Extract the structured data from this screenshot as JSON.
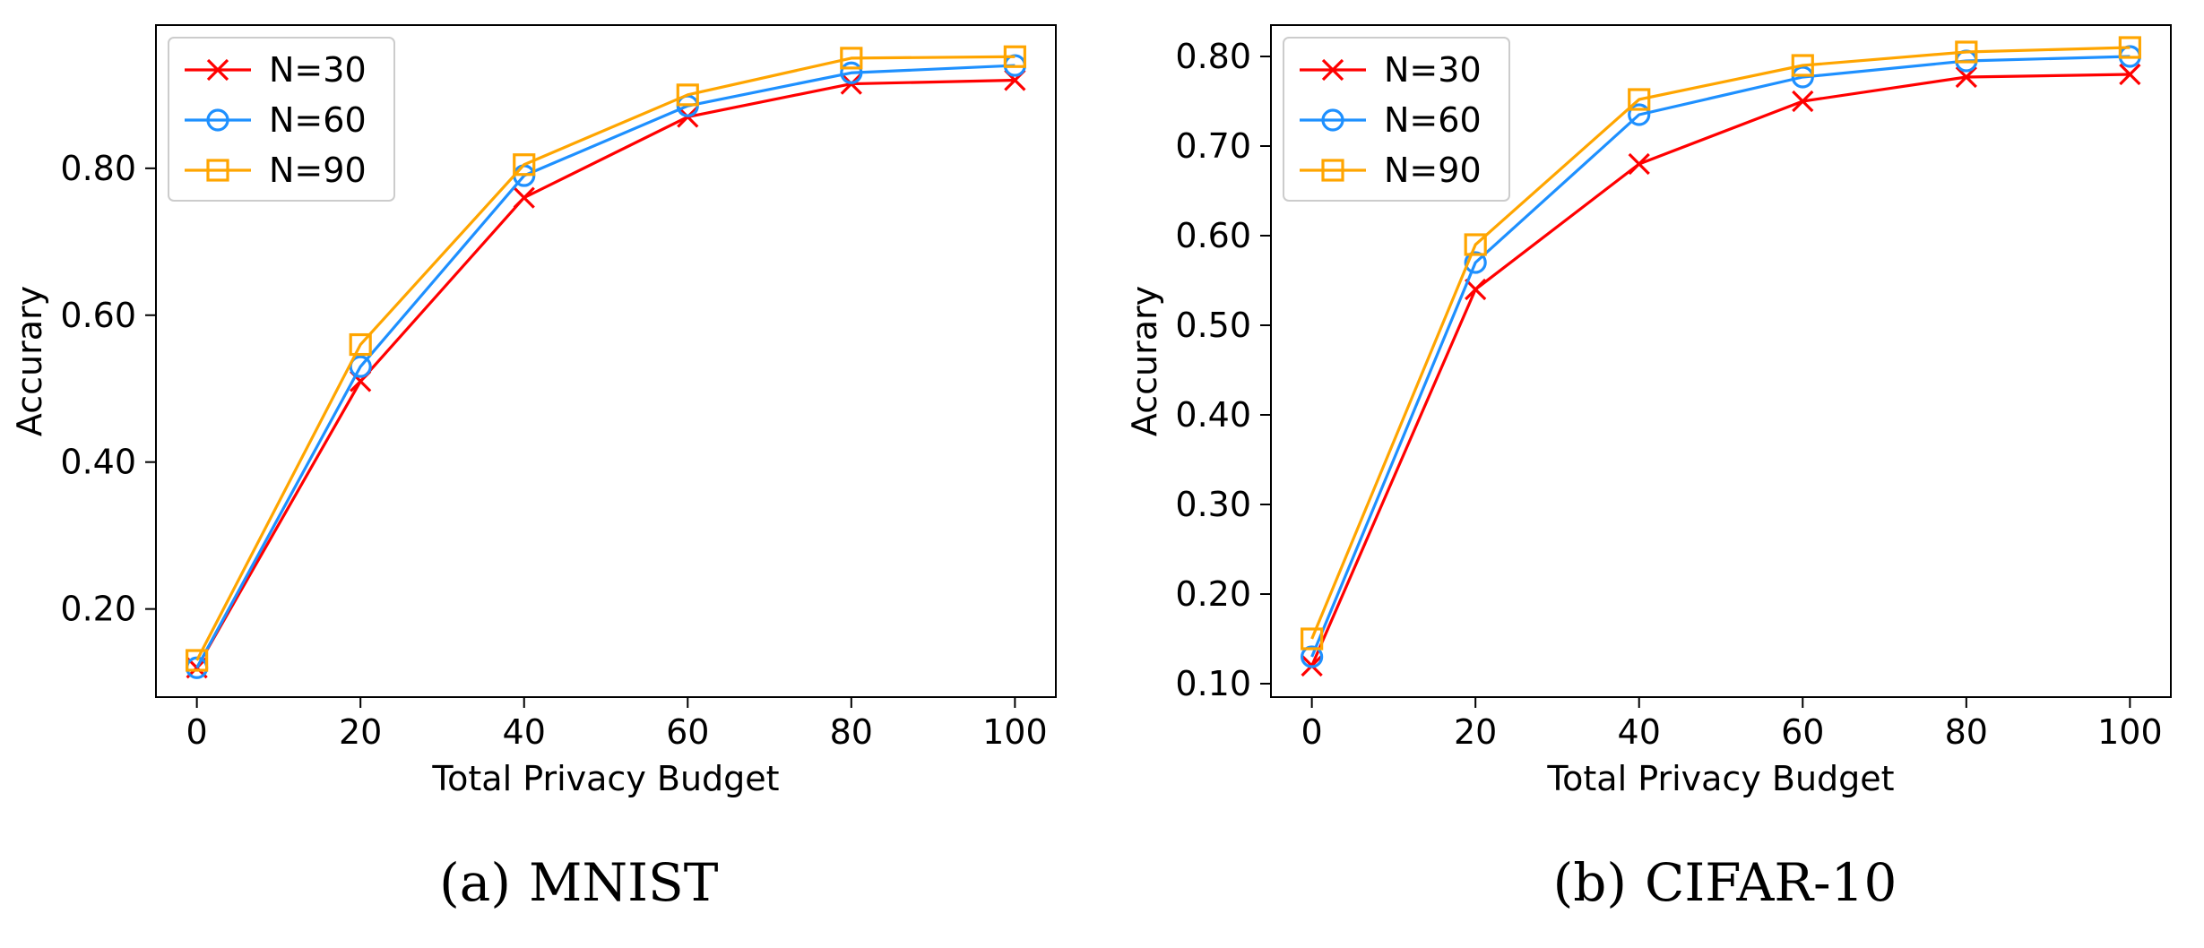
{
  "chart_data": [
    {
      "type": "line",
      "title": "",
      "caption_tag": "(a)",
      "caption": "MNIST",
      "xlabel": "Total Privacy Budget",
      "ylabel": "Accurary",
      "x": [
        0,
        20,
        40,
        60,
        80,
        100
      ],
      "xlim": [
        -5,
        105
      ],
      "ylim": [
        0.08,
        0.995
      ],
      "xticks": [
        0,
        20,
        40,
        60,
        80,
        100
      ],
      "xtick_labels": [
        "0",
        "20",
        "40",
        "60",
        "80",
        "100"
      ],
      "yticks": [
        0.2,
        0.4,
        0.6,
        0.8
      ],
      "ytick_labels": [
        "0.20",
        "0.40",
        "0.60",
        "0.80"
      ],
      "grid": false,
      "legend_position": "top-left",
      "series": [
        {
          "name": "N=30",
          "color": "#ff0000",
          "marker": "x",
          "values": [
            0.12,
            0.51,
            0.76,
            0.87,
            0.915,
            0.92
          ]
        },
        {
          "name": "N=60",
          "color": "#1e90ff",
          "marker": "o",
          "values": [
            0.12,
            0.53,
            0.79,
            0.885,
            0.93,
            0.94
          ]
        },
        {
          "name": "N=90",
          "color": "#ffa500",
          "marker": "s",
          "values": [
            0.13,
            0.56,
            0.805,
            0.9,
            0.95,
            0.952
          ]
        }
      ]
    },
    {
      "type": "line",
      "title": "",
      "caption_tag": "(b)",
      "caption": "CIFAR-10",
      "xlabel": "Total Privacy Budget",
      "ylabel": "Accurary",
      "x": [
        0,
        20,
        40,
        60,
        80,
        100
      ],
      "xlim": [
        -5,
        105
      ],
      "ylim": [
        0.085,
        0.835
      ],
      "xticks": [
        0,
        20,
        40,
        60,
        80,
        100
      ],
      "xtick_labels": [
        "0",
        "20",
        "40",
        "60",
        "80",
        "100"
      ],
      "yticks": [
        0.1,
        0.2,
        0.3,
        0.4,
        0.5,
        0.6,
        0.7,
        0.8
      ],
      "ytick_labels": [
        "0.10",
        "0.20",
        "0.30",
        "0.40",
        "0.50",
        "0.60",
        "0.70",
        "0.80"
      ],
      "grid": false,
      "legend_position": "top-left",
      "series": [
        {
          "name": "N=30",
          "color": "#ff0000",
          "marker": "x",
          "values": [
            0.12,
            0.54,
            0.68,
            0.75,
            0.777,
            0.78
          ]
        },
        {
          "name": "N=60",
          "color": "#1e90ff",
          "marker": "o",
          "values": [
            0.13,
            0.57,
            0.735,
            0.777,
            0.795,
            0.8
          ]
        },
        {
          "name": "N=90",
          "color": "#ffa500",
          "marker": "s",
          "values": [
            0.15,
            0.59,
            0.752,
            0.79,
            0.805,
            0.81
          ]
        }
      ]
    }
  ]
}
